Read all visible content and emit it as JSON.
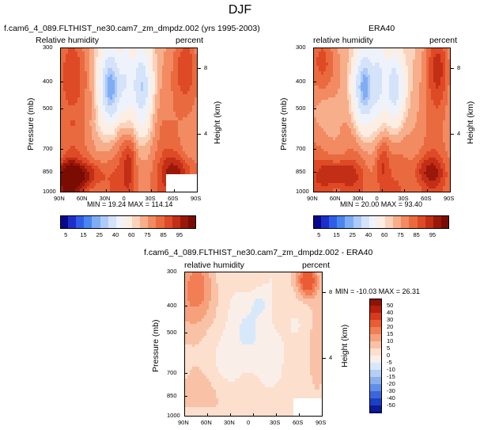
{
  "figure_title": "DJF",
  "panels": [
    {
      "title_left": "f.cam6_4_089.FLTHIST_ne30.cam7_zm_dmpdz.002 (yrs 1995-2003)",
      "title_center": "",
      "subtitle_left": "Relative humidity",
      "subtitle_right": "percent",
      "ylabel": "Pressure (mb)",
      "ylabel_right": "Height (km)",
      "stats": "MIN = 19.24  MAX = 114.14"
    },
    {
      "title_left": "",
      "title_center": "ERA40",
      "subtitle_left": "relative humidity",
      "subtitle_right": "percent",
      "ylabel": "Pressure (mb)",
      "ylabel_right": "Height (km)",
      "stats": "MIN = 20.00  MAX = 93.40"
    },
    {
      "title_left": "",
      "title_center": "f.cam6_4_089.FLTHIST_ne30.cam7_zm_dmpdz.002 - ERA40",
      "subtitle_left": "relative humidity",
      "subtitle_right": "percent",
      "ylabel": "Pressure (mb)",
      "ylabel_right": "Height (km)",
      "stats": "MIN = -10.03  MAX = 26.31"
    }
  ],
  "colorbar_abs": {
    "labels": [
      "5",
      "15",
      "25",
      "40",
      "60",
      "75",
      "85",
      "95"
    ],
    "colors": [
      "#08088c",
      "#1e2ec8",
      "#2f5ee6",
      "#4a86f0",
      "#7fadf5",
      "#aecaf8",
      "#d4e3fa",
      "#eef3fb",
      "#fdeee4",
      "#fbd3bc",
      "#f7ae8a",
      "#f28a62",
      "#ea6a40",
      "#de4a26",
      "#c22e16",
      "#9a1808",
      "#7a0c04"
    ]
  },
  "colorbar_diff": {
    "labels": [
      "50",
      "40",
      "30",
      "20",
      "15",
      "10",
      "5",
      "0",
      "-5",
      "-10",
      "-15",
      "-20",
      "-30",
      "-40",
      "-50"
    ],
    "colors": [
      "#8c1404",
      "#b81e0c",
      "#d83a1c",
      "#ea5c34",
      "#f27e56",
      "#f6a07c",
      "#f9c2a6",
      "#fcdfcd",
      "#f9efe8",
      "#d8e8fb",
      "#b4cef5",
      "#8cb0ef",
      "#628ee8",
      "#3c66dc",
      "#1e3ec6",
      "#0a1c9a"
    ]
  },
  "chart_data": [
    {
      "type": "heatmap",
      "title": "f.cam6_4_089.FLTHIST_ne30.cam7_zm_dmpdz.002 (yrs 1995-2003)",
      "variable": "Relative humidity",
      "units": "percent",
      "season": "DJF",
      "xlabel": "",
      "ylabel": "Pressure (mb)",
      "x_ticks": [
        "90N",
        "60N",
        "30N",
        "0",
        "30S",
        "60S",
        "90S"
      ],
      "y_ticks": [
        300,
        400,
        500,
        700,
        850,
        1000
      ],
      "y2_ticks": [
        8,
        4
      ],
      "ylabel_right": "Height (km)",
      "min": 19.24,
      "max": 114.14,
      "levels": [
        5,
        10,
        15,
        20,
        25,
        30,
        40,
        50,
        60,
        65,
        70,
        75,
        80,
        85,
        90,
        95
      ]
    },
    {
      "type": "heatmap",
      "title": "ERA40",
      "variable": "relative humidity",
      "units": "percent",
      "season": "DJF",
      "xlabel": "",
      "ylabel": "Pressure (mb)",
      "x_ticks": [
        "90N",
        "60N",
        "30N",
        "0",
        "30S",
        "60S",
        "90S"
      ],
      "y_ticks": [
        300,
        400,
        500,
        700,
        850,
        1000
      ],
      "y2_ticks": [
        8,
        4
      ],
      "ylabel_right": "Height (km)",
      "min": 20.0,
      "max": 93.4,
      "levels": [
        5,
        10,
        15,
        20,
        25,
        30,
        40,
        50,
        60,
        65,
        70,
        75,
        80,
        85,
        90,
        95
      ]
    },
    {
      "type": "heatmap",
      "title": "f.cam6_4_089.FLTHIST_ne30.cam7_zm_dmpdz.002 - ERA40",
      "variable": "relative humidity",
      "units": "percent",
      "season": "DJF",
      "xlabel": "",
      "ylabel": "Pressure (mb)",
      "x_ticks": [
        "90N",
        "60N",
        "30N",
        "0",
        "30S",
        "60S",
        "90S"
      ],
      "y_ticks": [
        300,
        400,
        500,
        700,
        850,
        1000
      ],
      "y2_ticks": [
        8,
        4
      ],
      "ylabel_right": "Height (km)",
      "min": -10.03,
      "max": 26.31,
      "levels": [
        -50,
        -40,
        -30,
        -20,
        -15,
        -10,
        -5,
        0,
        5,
        10,
        15,
        20,
        30,
        40,
        50
      ]
    }
  ]
}
